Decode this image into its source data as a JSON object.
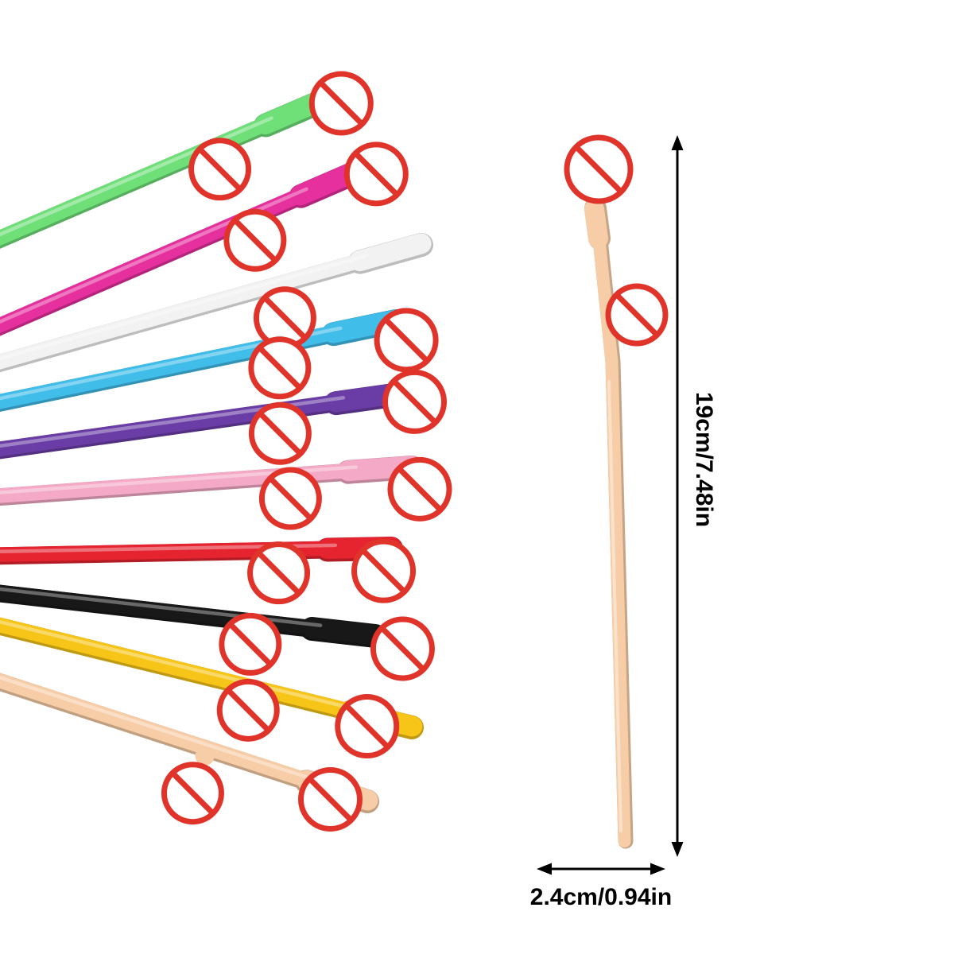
{
  "image": {
    "background_color": "#ffffff"
  },
  "straws": {
    "count": 10,
    "items": [
      {
        "name": "green",
        "color": "#6fdf78"
      },
      {
        "name": "magenta",
        "color": "#e5309e"
      },
      {
        "name": "white",
        "color": "#f2f2f2"
      },
      {
        "name": "blue",
        "color": "#41bde9"
      },
      {
        "name": "purple",
        "color": "#6a3da6"
      },
      {
        "name": "pink",
        "color": "#f4a9c6"
      },
      {
        "name": "red",
        "color": "#e52430"
      },
      {
        "name": "black",
        "color": "#181818"
      },
      {
        "name": "yellow",
        "color": "#f6c518"
      },
      {
        "name": "nude",
        "color": "#f7cda7"
      }
    ]
  },
  "reference_straw": {
    "name": "nude",
    "color": "#f7cda7"
  },
  "prohibition_symbol": {
    "icon": "no-entry-icon",
    "ring_color": "#e0342b",
    "fill_color": "#ffffff"
  },
  "measurements": {
    "height_label": "19cm/7.48in",
    "width_label": "2.4cm/0.94in",
    "arrow_color": "#000000"
  }
}
